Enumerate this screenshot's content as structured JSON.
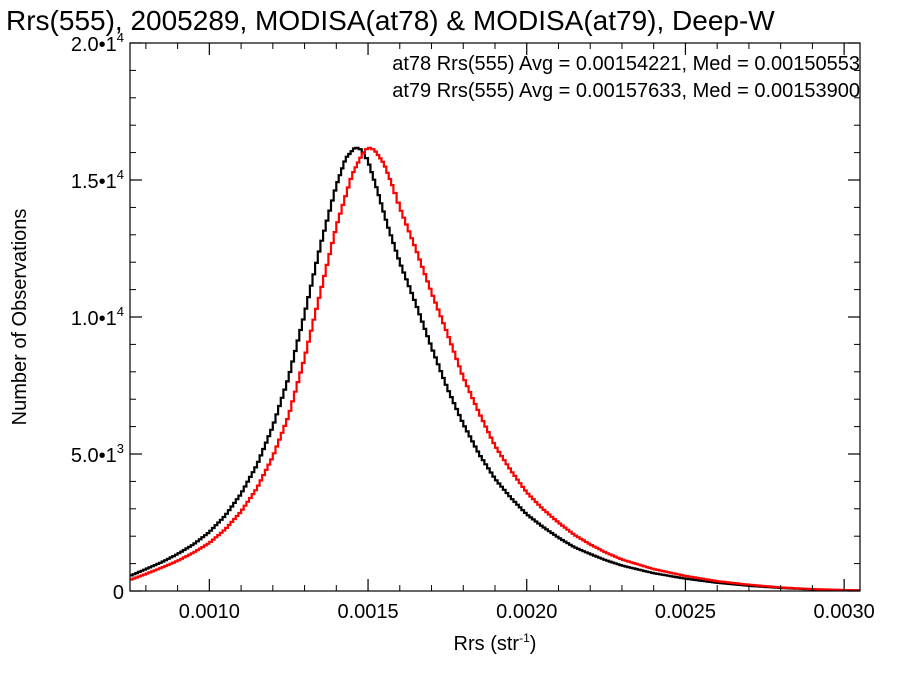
{
  "chart_data": {
    "type": "line",
    "title": "Rrs(555), 2005289, MODISA(at78) & MODISA(at79), Deep-W",
    "xlabel": "Rrs (str",
    "xlabel_sup": "-1",
    "xlabel_end": ")",
    "ylabel": "Number of Observations",
    "xlim": [
      0.00075,
      0.00305
    ],
    "ylim": [
      0,
      20000
    ],
    "x_ticks": [
      {
        "value": 0.001,
        "label": "0.0010"
      },
      {
        "value": 0.0015,
        "label": "0.0015"
      },
      {
        "value": 0.002,
        "label": "0.0020"
      },
      {
        "value": 0.0025,
        "label": "0.0025"
      },
      {
        "value": 0.003,
        "label": "0.0030"
      }
    ],
    "y_ticks": [
      {
        "value": 0,
        "mant": "0",
        "exp": ""
      },
      {
        "value": 5000,
        "mant": "5.0•1",
        "exp": "3"
      },
      {
        "value": 10000,
        "mant": "1.0•1",
        "exp": "4"
      },
      {
        "value": 15000,
        "mant": "1.5•1",
        "exp": "4"
      },
      {
        "value": 20000,
        "mant": "2.0•1",
        "exp": "4"
      }
    ],
    "grid": false,
    "series": [
      {
        "color": "#000000",
        "annotation": "at78 Rrs(555) Avg = 0.00154221, Med = 0.00150553",
        "x": [
          0.00075,
          0.0008,
          0.00085,
          0.0009,
          0.00095,
          0.001,
          0.00105,
          0.0011,
          0.00115,
          0.0012,
          0.00125,
          0.0013,
          0.00135,
          0.0014,
          0.00143,
          0.00146,
          0.00148,
          0.0015,
          0.00153,
          0.00156,
          0.0016,
          0.00165,
          0.0017,
          0.00175,
          0.0018,
          0.00185,
          0.0019,
          0.00195,
          0.002,
          0.00205,
          0.0021,
          0.00215,
          0.0022,
          0.00225,
          0.0023,
          0.0024,
          0.0025,
          0.0026,
          0.0027,
          0.0028,
          0.0029,
          0.003,
          0.00305
        ],
        "y": [
          550,
          800,
          1050,
          1350,
          1700,
          2150,
          2750,
          3550,
          4600,
          6000,
          7800,
          10100,
          12600,
          14800,
          15800,
          16200,
          16100,
          15700,
          14600,
          13400,
          12000,
          10500,
          8900,
          7400,
          6100,
          5000,
          4100,
          3400,
          2800,
          2350,
          1950,
          1600,
          1350,
          1120,
          930,
          650,
          450,
          300,
          190,
          110,
          60,
          30,
          20
        ]
      },
      {
        "color": "#ff0000",
        "annotation": "at79 Rrs(555) Avg = 0.00157633, Med = 0.00153900",
        "x": [
          0.00075,
          0.0008,
          0.00085,
          0.0009,
          0.00095,
          0.001,
          0.00105,
          0.0011,
          0.00115,
          0.0012,
          0.00125,
          0.0013,
          0.00135,
          0.0014,
          0.00145,
          0.00148,
          0.0015,
          0.00152,
          0.00155,
          0.00158,
          0.0016,
          0.00165,
          0.0017,
          0.00175,
          0.0018,
          0.00185,
          0.0019,
          0.00195,
          0.002,
          0.00205,
          0.0021,
          0.00215,
          0.0022,
          0.00225,
          0.0023,
          0.0024,
          0.0025,
          0.0026,
          0.0027,
          0.0028,
          0.0029,
          0.003,
          0.00305
        ],
        "y": [
          400,
          620,
          850,
          1100,
          1400,
          1750,
          2250,
          2900,
          3750,
          4900,
          6400,
          8500,
          10900,
          13300,
          15200,
          15900,
          16200,
          16100,
          15600,
          14700,
          14000,
          12500,
          10900,
          9400,
          7800,
          6500,
          5300,
          4400,
          3600,
          3000,
          2500,
          2050,
          1700,
          1400,
          1150,
          800,
          550,
          360,
          230,
          130,
          70,
          35,
          20
        ]
      }
    ]
  }
}
